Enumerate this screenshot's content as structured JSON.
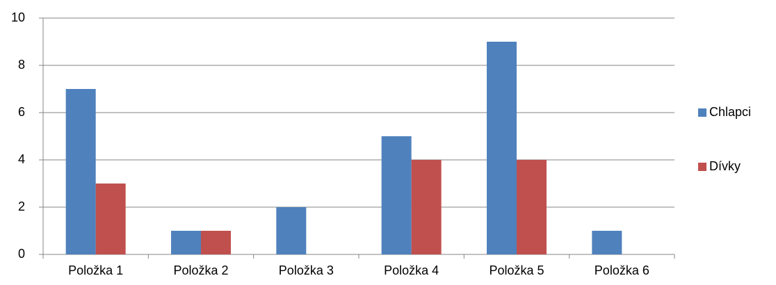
{
  "chart_data": {
    "type": "bar",
    "categories": [
      "Položka 1",
      "Položka 2",
      "Položka 3",
      "Položka 4",
      "Položka 5",
      "Položka 6"
    ],
    "series": [
      {
        "name": "Chlapci",
        "color": "#4f81bd",
        "values": [
          7,
          1,
          2,
          5,
          9,
          1
        ]
      },
      {
        "name": "Dívky",
        "color": "#c0504d",
        "values": [
          3,
          1,
          0,
          4,
          4,
          0
        ]
      }
    ],
    "ylim": [
      0,
      10
    ],
    "yticks": [
      0,
      2,
      4,
      6,
      8,
      10
    ],
    "grid": true,
    "legend": "right"
  }
}
